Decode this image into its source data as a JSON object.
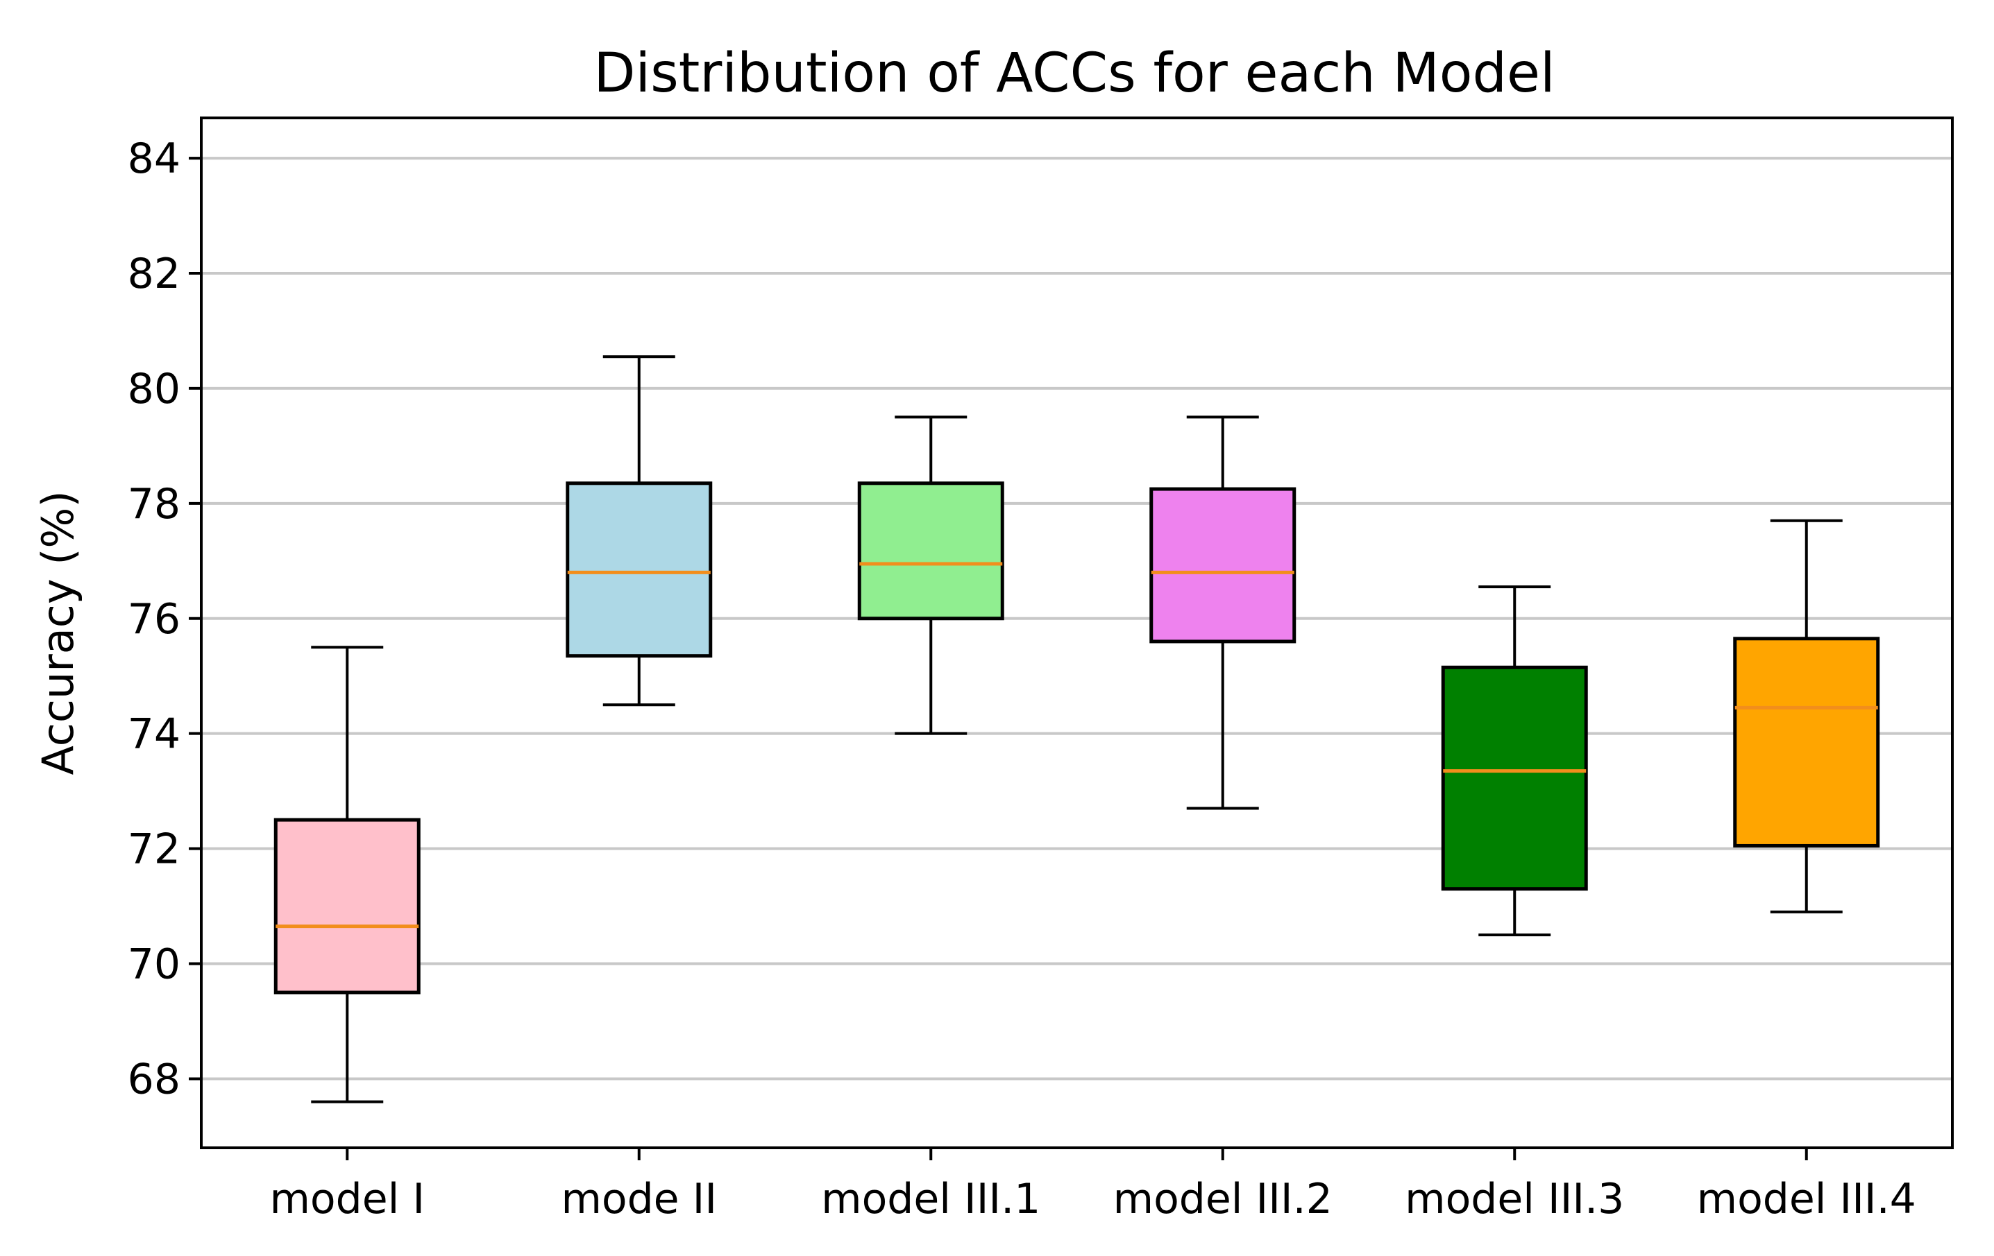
{
  "chart_data": {
    "type": "box",
    "title": "Distribution of ACCs for each Model",
    "xlabel": "",
    "ylabel": "Accuracy (%)",
    "ylim": [
      66.8,
      84.7
    ],
    "yticks": [
      68,
      70,
      72,
      74,
      76,
      78,
      80,
      82,
      84
    ],
    "grid": "horizontal",
    "median_color": "#f28e1c",
    "series": [
      {
        "name": "model I",
        "whisker_low": 67.6,
        "q1": 69.5,
        "median": 70.65,
        "q3": 72.5,
        "whisker_high": 75.5,
        "color": "#ffc0cb"
      },
      {
        "name": "mode II",
        "whisker_low": 74.5,
        "q1": 75.35,
        "median": 76.8,
        "q3": 78.35,
        "whisker_high": 80.55,
        "color": "#add8e6"
      },
      {
        "name": "model III.1",
        "whisker_low": 74.0,
        "q1": 76.0,
        "median": 76.95,
        "q3": 78.35,
        "whisker_high": 79.5,
        "color": "#90ee90"
      },
      {
        "name": "model III.2",
        "whisker_low": 72.7,
        "q1": 75.6,
        "median": 76.8,
        "q3": 78.25,
        "whisker_high": 79.5,
        "color": "#ee82ee"
      },
      {
        "name": "model III.3",
        "whisker_low": 70.5,
        "q1": 71.3,
        "median": 73.35,
        "q3": 75.15,
        "whisker_high": 76.55,
        "color": "#008000"
      },
      {
        "name": "model III.4",
        "whisker_low": 70.9,
        "q1": 72.05,
        "median": 74.45,
        "q3": 75.65,
        "whisker_high": 77.7,
        "color": "#ffa500"
      }
    ]
  }
}
